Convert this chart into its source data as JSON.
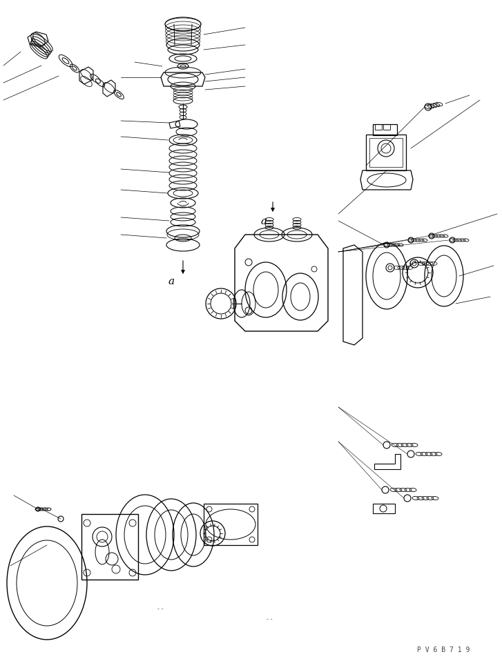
{
  "background_color": "#ffffff",
  "line_color": "#000000",
  "lw": 0.8,
  "fig_width": 7.27,
  "fig_height": 9.58,
  "dpi": 100,
  "watermark": "P V 6 B 7 1 9"
}
